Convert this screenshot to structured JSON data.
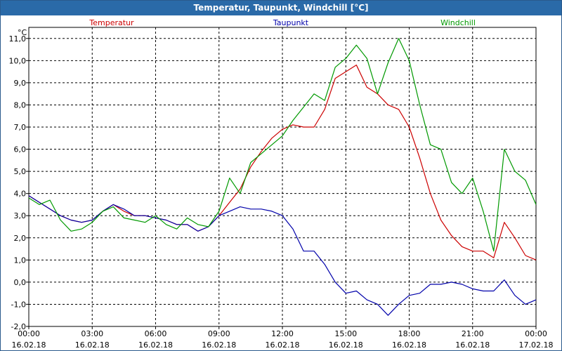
{
  "window": {
    "title": "Temperatur, Taupunkt, Windchill [°C]"
  },
  "chart_data": {
    "type": "line",
    "title": "Temperatur, Taupunkt, Windchill [°C]",
    "ylabel": "°C",
    "ylim": [
      -2,
      11.5
    ],
    "yticks": [
      11,
      10,
      9,
      8,
      7,
      6,
      5,
      4,
      3,
      2,
      1,
      0,
      -1,
      -2
    ],
    "ytick_labels": [
      "11,0",
      "10,0",
      "9,0",
      "8,0",
      "7,0",
      "6,0",
      "5,0",
      "4,0",
      "3,0",
      "2,0",
      "1,0",
      "0,0",
      "-1,0",
      "-2,0"
    ],
    "xlim": [
      0,
      24
    ],
    "xticks": [
      0,
      3,
      6,
      9,
      12,
      15,
      18,
      21,
      24
    ],
    "xtick_labels": [
      {
        "time": "00:00",
        "date": "16.02.18"
      },
      {
        "time": "03:00",
        "date": "16.02.18"
      },
      {
        "time": "06:00",
        "date": "16.02.18"
      },
      {
        "time": "09:00",
        "date": "16.02.18"
      },
      {
        "time": "12:00",
        "date": "16.02.18"
      },
      {
        "time": "15:00",
        "date": "16.02.18"
      },
      {
        "time": "18:00",
        "date": "16.02.18"
      },
      {
        "time": "21:00",
        "date": "16.02.18"
      },
      {
        "time": "00:00",
        "date": "17.02.18"
      }
    ],
    "grid": true,
    "legend_position": "top",
    "series": [
      {
        "name": "Temperatur",
        "color": "#cc0000",
        "x": [
          0,
          0.5,
          1,
          1.5,
          2,
          2.5,
          3,
          3.5,
          4,
          4.5,
          5,
          5.5,
          6,
          6.5,
          7,
          7.5,
          8,
          8.5,
          9,
          9.5,
          10,
          10.5,
          11,
          11.5,
          12,
          12.5,
          13,
          13.5,
          14,
          14.5,
          15,
          15.5,
          16,
          16.5,
          17,
          17.5,
          18,
          18.5,
          19,
          19.5,
          20,
          20.5,
          21,
          21.5,
          22,
          22.5,
          23,
          23.5,
          24
        ],
        "values": [
          3.9,
          3.6,
          3.3,
          3.0,
          2.8,
          2.7,
          2.8,
          3.2,
          3.5,
          3.2,
          3.0,
          3.0,
          2.9,
          2.8,
          2.6,
          2.6,
          2.3,
          2.5,
          3.0,
          3.6,
          4.2,
          5.2,
          5.9,
          6.5,
          6.9,
          7.1,
          7.0,
          7.0,
          7.8,
          9.2,
          9.5,
          9.8,
          8.8,
          8.5,
          8.0,
          7.8,
          7.0,
          5.6,
          4.0,
          2.8,
          2.1,
          1.6,
          1.4,
          1.4,
          1.1,
          2.7,
          2.0,
          1.2,
          1.0
        ]
      },
      {
        "name": "Taupunkt",
        "color": "#0000aa",
        "x": [
          0,
          0.5,
          1,
          1.5,
          2,
          2.5,
          3,
          3.5,
          4,
          4.5,
          5,
          5.5,
          6,
          6.5,
          7,
          7.5,
          8,
          8.5,
          9,
          9.5,
          10,
          10.5,
          11,
          11.5,
          12,
          12.5,
          13,
          13.5,
          14,
          14.5,
          15,
          15.5,
          16,
          16.5,
          17,
          17.5,
          18,
          18.5,
          19,
          19.5,
          20,
          20.5,
          21,
          21.5,
          22,
          22.5,
          23,
          23.5,
          24
        ],
        "values": [
          3.9,
          3.6,
          3.3,
          3.0,
          2.8,
          2.7,
          2.8,
          3.2,
          3.5,
          3.3,
          3.0,
          3.0,
          2.9,
          2.8,
          2.6,
          2.6,
          2.3,
          2.5,
          3.0,
          3.2,
          3.4,
          3.3,
          3.3,
          3.2,
          3.0,
          2.4,
          1.4,
          1.4,
          0.8,
          0.0,
          -0.5,
          -0.4,
          -0.8,
          -1.0,
          -1.5,
          -1.0,
          -0.6,
          -0.5,
          -0.1,
          -0.1,
          0.0,
          -0.1,
          -0.3,
          -0.4,
          -0.4,
          0.1,
          -0.6,
          -1.0,
          -0.8
        ]
      },
      {
        "name": "Windchill",
        "color": "#009900",
        "x": [
          0,
          0.5,
          1,
          1.5,
          2,
          2.5,
          3,
          3.5,
          4,
          4.5,
          5,
          5.5,
          6,
          6.5,
          7,
          7.5,
          8,
          8.5,
          9,
          9.5,
          10,
          10.5,
          11,
          11.5,
          12,
          12.5,
          13,
          13.5,
          14,
          14.5,
          15,
          15.5,
          16,
          16.5,
          17,
          17.5,
          18,
          18.5,
          19,
          19.5,
          20,
          20.5,
          21,
          21.5,
          22,
          22.5,
          23,
          23.5,
          24
        ],
        "values": [
          3.8,
          3.5,
          3.7,
          2.8,
          2.3,
          2.4,
          2.7,
          3.2,
          3.4,
          2.9,
          2.8,
          2.7,
          3.0,
          2.6,
          2.4,
          2.9,
          2.6,
          2.5,
          3.2,
          4.7,
          4.0,
          5.4,
          5.8,
          6.2,
          6.6,
          7.3,
          7.9,
          8.5,
          8.2,
          9.7,
          10.1,
          10.7,
          10.1,
          8.5,
          9.9,
          11.0,
          10.0,
          8.0,
          6.2,
          6.0,
          4.5,
          4.0,
          4.7,
          3.2,
          1.4,
          6.0,
          5.0,
          4.6,
          3.5
        ]
      }
    ]
  }
}
